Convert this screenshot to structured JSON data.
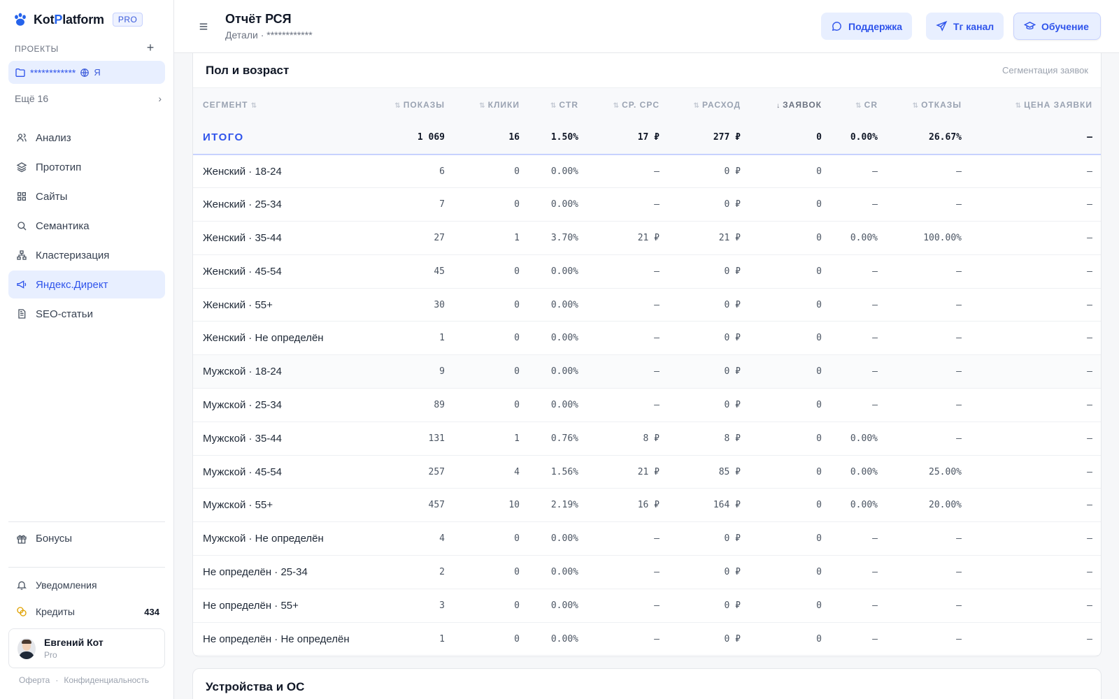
{
  "brand": {
    "name_pre": "Kot",
    "name_p": "P",
    "name_post": "latform",
    "badge": "PRO",
    "accent": "#2563eb"
  },
  "sidebar": {
    "section_label": "ПРОЕКТЫ",
    "project": {
      "name": "************",
      "ya": "Я"
    },
    "more": "Ещё 16",
    "nav": [
      {
        "label": "Анализ",
        "icon": "users-icon",
        "active": false
      },
      {
        "label": "Прототип",
        "icon": "layers-icon",
        "active": false
      },
      {
        "label": "Сайты",
        "icon": "grid-icon",
        "active": false
      },
      {
        "label": "Семантика",
        "icon": "search-icon",
        "active": false
      },
      {
        "label": "Кластеризация",
        "icon": "cluster-icon",
        "active": false
      },
      {
        "label": "Яндекс.Директ",
        "icon": "megaphone-icon",
        "active": true
      },
      {
        "label": "SEO-статьи",
        "icon": "document-icon",
        "active": false
      }
    ],
    "bonus": "Бонусы",
    "notifications": "Уведомления",
    "credits_label": "Кредиты",
    "credits_count": "434",
    "user": {
      "name": "Евгений Кот",
      "plan": "Pro"
    },
    "footer": {
      "offer": "Оферта",
      "sep": "·",
      "privacy": "Конфиденциальность"
    }
  },
  "header": {
    "title": "Отчёт РСЯ",
    "subtitle": "Детали · ************",
    "buttons": {
      "support": "Поддержка",
      "tg": "Тг канал",
      "learn": "Обучение"
    }
  },
  "table_card": {
    "title": "Пол и возраст",
    "hint": "Сегментация заявок",
    "columns": [
      "СЕГМЕНТ",
      "ПОКАЗЫ",
      "КЛИКИ",
      "CTR",
      "СР. CPC",
      "РАСХОД",
      "ЗАЯВОК",
      "CR",
      "ОТКАЗЫ",
      "ЦЕНА ЗАЯВКИ"
    ],
    "sorted_column": "ЗАЯВОК",
    "total": [
      "ИТОГО",
      "1 069",
      "16",
      "1.50%",
      "17 ₽",
      "277 ₽",
      "0",
      "0.00%",
      "26.67%",
      "—"
    ],
    "rows": [
      [
        "Женский · 18-24",
        "6",
        "0",
        "0.00%",
        "—",
        "0 ₽",
        "0",
        "—",
        "—",
        "—"
      ],
      [
        "Женский · 25-34",
        "7",
        "0",
        "0.00%",
        "—",
        "0 ₽",
        "0",
        "—",
        "—",
        "—"
      ],
      [
        "Женский · 35-44",
        "27",
        "1",
        "3.70%",
        "21 ₽",
        "21 ₽",
        "0",
        "0.00%",
        "100.00%",
        "—"
      ],
      [
        "Женский · 45-54",
        "45",
        "0",
        "0.00%",
        "—",
        "0 ₽",
        "0",
        "—",
        "—",
        "—"
      ],
      [
        "Женский · 55+",
        "30",
        "0",
        "0.00%",
        "—",
        "0 ₽",
        "0",
        "—",
        "—",
        "—"
      ],
      [
        "Женский · Не определён",
        "1",
        "0",
        "0.00%",
        "—",
        "0 ₽",
        "0",
        "—",
        "—",
        "—"
      ],
      [
        "Мужской · 18-24",
        "9",
        "0",
        "0.00%",
        "—",
        "0 ₽",
        "0",
        "—",
        "—",
        "—"
      ],
      [
        "Мужской · 25-34",
        "89",
        "0",
        "0.00%",
        "—",
        "0 ₽",
        "0",
        "—",
        "—",
        "—"
      ],
      [
        "Мужской · 35-44",
        "131",
        "1",
        "0.76%",
        "8 ₽",
        "8 ₽",
        "0",
        "0.00%",
        "—",
        "—"
      ],
      [
        "Мужской · 45-54",
        "257",
        "4",
        "1.56%",
        "21 ₽",
        "85 ₽",
        "0",
        "0.00%",
        "25.00%",
        "—"
      ],
      [
        "Мужской · 55+",
        "457",
        "10",
        "2.19%",
        "16 ₽",
        "164 ₽",
        "0",
        "0.00%",
        "20.00%",
        "—"
      ],
      [
        "Мужской · Не определён",
        "4",
        "0",
        "0.00%",
        "—",
        "0 ₽",
        "0",
        "—",
        "—",
        "—"
      ],
      [
        "Не определён · 25-34",
        "2",
        "0",
        "0.00%",
        "—",
        "0 ₽",
        "0",
        "—",
        "—",
        "—"
      ],
      [
        "Не определён · 55+",
        "3",
        "0",
        "0.00%",
        "—",
        "0 ₽",
        "0",
        "—",
        "—",
        "—"
      ],
      [
        "Не определён · Не определён",
        "1",
        "0",
        "0.00%",
        "—",
        "0 ₽",
        "0",
        "—",
        "—",
        "—"
      ]
    ]
  },
  "next_card": {
    "title": "Устройства и ОС"
  }
}
